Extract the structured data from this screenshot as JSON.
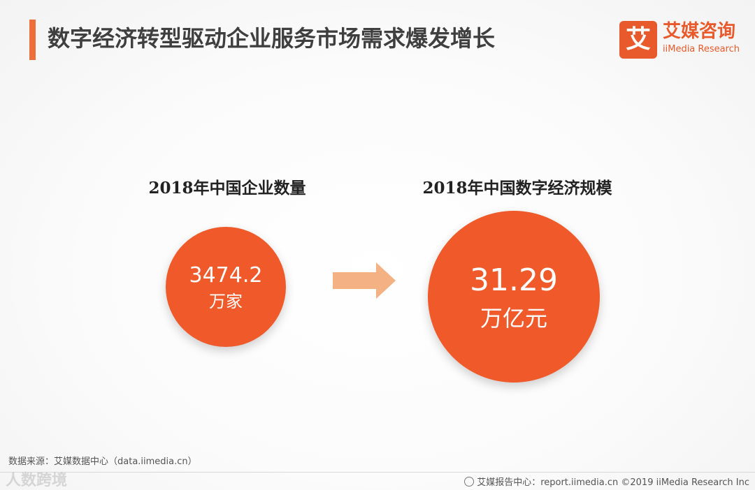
{
  "header": {
    "title": "数字经济转型驱动企业服务市场需求爆发增长",
    "logo_mark": "艾",
    "logo_cn": "艾媒咨询",
    "logo_en": "iiMedia Research"
  },
  "left_block": {
    "label": "2018年中国企业数量",
    "value": "3474.2",
    "unit": "万家"
  },
  "right_block": {
    "label": "2018年中国数字经济规模",
    "value": "31.29",
    "unit": "万亿元"
  },
  "footer": {
    "source": "数据来源：艾媒数据中心（data.iimedia.cn）",
    "credit": "艾媒报告中心：report.iimedia.cn ©2019 iiMedia Research Inc",
    "watermark": "人数跨境"
  },
  "colors": {
    "accent": "#f05a2a",
    "title_bar": "#ee6e3a",
    "arrow": "#f4b184"
  }
}
